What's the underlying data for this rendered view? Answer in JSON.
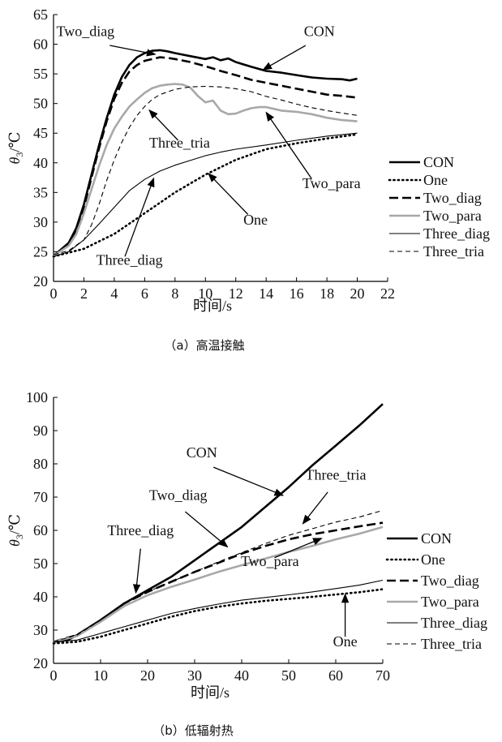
{
  "chart_data": [
    {
      "panel": "a",
      "type": "line",
      "caption": "（a）高温接触",
      "xlabel": "时间/s",
      "ylabel": "θ",
      "ylabel_sub": "3",
      "ylabel_unit": "/℃",
      "xlim": [
        0,
        22
      ],
      "ylim": [
        20,
        65
      ],
      "xticks": [
        0,
        2,
        4,
        6,
        8,
        10,
        12,
        14,
        16,
        18,
        20,
        22
      ],
      "yticks": [
        20,
        25,
        30,
        35,
        40,
        45,
        50,
        55,
        60,
        65
      ],
      "grid": false,
      "legend_position": "right",
      "series": [
        {
          "name": "CON",
          "style": "thick-solid",
          "color": "#000000",
          "x": [
            0,
            1,
            1.5,
            2,
            2.5,
            3,
            3.5,
            4,
            4.5,
            5,
            5.5,
            6,
            6.5,
            7,
            7.5,
            8,
            9,
            10,
            10.5,
            11,
            11.5,
            12,
            13,
            14,
            15,
            16,
            17,
            18,
            19,
            19.5,
            20
          ],
          "y": [
            24.3,
            26.5,
            29,
            33,
            38,
            43,
            47.5,
            51.5,
            54.5,
            56.5,
            57.8,
            58.5,
            58.9,
            59,
            58.8,
            58.5,
            58,
            57.5,
            57.8,
            57.3,
            57.6,
            57,
            56.2,
            55.5,
            55.2,
            54.8,
            54.4,
            54.2,
            54.1,
            53.9,
            54.2
          ]
        },
        {
          "name": "One",
          "style": "dotted",
          "color": "#000000",
          "x": [
            0,
            2,
            4,
            6,
            8,
            10,
            12,
            14,
            16,
            18,
            20
          ],
          "y": [
            24.2,
            25.5,
            28,
            31.5,
            35,
            38,
            40.5,
            42.3,
            43.3,
            44.1,
            44.8
          ]
        },
        {
          "name": "Two_diag",
          "style": "thick-dashed",
          "color": "#000000",
          "x": [
            0,
            1,
            1.5,
            2,
            2.5,
            3,
            3.5,
            4,
            4.5,
            5,
            5.5,
            6,
            6.5,
            7,
            7.5,
            8,
            9,
            10,
            11,
            12,
            13,
            14,
            15,
            16,
            17,
            18,
            19,
            20
          ],
          "y": [
            24.3,
            26.3,
            28.6,
            32.5,
            37.5,
            42.5,
            47,
            50.8,
            53.5,
            55.4,
            56.5,
            57.2,
            57.5,
            57.8,
            57.7,
            57.5,
            57,
            56.3,
            55.5,
            54.8,
            54,
            53.5,
            53,
            52.5,
            52,
            51.5,
            51.3,
            51
          ]
        },
        {
          "name": "Two_para",
          "style": "gray-solid",
          "color": "#a8a8a8",
          "x": [
            0,
            1,
            1.5,
            2,
            2.5,
            3,
            3.5,
            4,
            4.5,
            5,
            5.5,
            6,
            6.5,
            7,
            7.5,
            8,
            8.5,
            9,
            9.5,
            10,
            10.5,
            11,
            11.5,
            12,
            12.5,
            13,
            13.5,
            14,
            14.5,
            15,
            16,
            17,
            18,
            19,
            20
          ],
          "y": [
            24.3,
            26,
            28,
            31.5,
            35.5,
            39.5,
            43,
            45.8,
            47.8,
            49.5,
            50.7,
            51.8,
            52.6,
            53,
            53.2,
            53.3,
            53.2,
            52.7,
            51.3,
            50.2,
            50.5,
            48.8,
            48.2,
            48.3,
            48.8,
            49.2,
            49.4,
            49.4,
            49.1,
            48.8,
            48.6,
            48.2,
            47.6,
            47.2,
            47
          ]
        },
        {
          "name": "Three_diag",
          "style": "thin-solid",
          "color": "#000000",
          "x": [
            0,
            1,
            2,
            3,
            4,
            5,
            6,
            7,
            8,
            9,
            10,
            11,
            12,
            14,
            16,
            18,
            20
          ],
          "y": [
            24.2,
            25,
            27,
            29.7,
            32.5,
            35.3,
            37.2,
            38.6,
            39.6,
            40.4,
            41.2,
            41.8,
            42.3,
            43,
            43.8,
            44.5,
            45
          ]
        },
        {
          "name": "Three_tria",
          "style": "thin-dashed",
          "color": "#000000",
          "x": [
            0,
            1,
            2,
            2.5,
            3,
            3.5,
            4,
            4.5,
            5,
            5.5,
            6,
            6.5,
            7,
            8,
            9,
            10,
            11,
            12,
            13,
            14,
            15,
            16,
            17,
            18,
            19,
            20
          ],
          "y": [
            24.5,
            25.2,
            27,
            29.5,
            33,
            37,
            40.5,
            43.5,
            46,
            48,
            49.5,
            50.7,
            51.5,
            52.4,
            52.8,
            52.9,
            52.8,
            52.5,
            52,
            51.2,
            50.6,
            49.9,
            49.3,
            48.8,
            48.4,
            48
          ]
        }
      ],
      "annotations": [
        {
          "text": "Two_diag",
          "x": 2.1,
          "y": 61.4,
          "anchor": "middle",
          "arrow_from": [
            3.7,
            59.8
          ],
          "arrow_to": [
            6.7,
            58.3
          ]
        },
        {
          "text": "CON",
          "x": 17.5,
          "y": 61.4,
          "anchor": "middle",
          "arrow_from": [
            16.6,
            59.8
          ],
          "arrow_to": [
            13.8,
            55.7
          ]
        },
        {
          "text": "Three_tria",
          "x": 8.3,
          "y": 42.6,
          "anchor": "middle",
          "arrow_from": [
            8.2,
            43.8
          ],
          "arrow_to": [
            6.3,
            48.9
          ]
        },
        {
          "text": "Two_para",
          "x": 18.3,
          "y": 35.7,
          "anchor": "middle",
          "arrow_from": [
            17.0,
            37.3
          ],
          "arrow_to": [
            14.0,
            48.5
          ]
        },
        {
          "text": "One",
          "x": 13.3,
          "y": 29.6,
          "anchor": "middle",
          "arrow_from": [
            12.8,
            31.3
          ],
          "arrow_to": [
            10.2,
            38.2
          ]
        },
        {
          "text": "Three_diag",
          "x": 5.0,
          "y": 22.8,
          "anchor": "middle",
          "arrow_from": [
            4.7,
            24.2
          ],
          "arrow_to": [
            6.6,
            37.4
          ]
        }
      ]
    },
    {
      "panel": "b",
      "type": "line",
      "caption": "（b）低辐射热",
      "xlabel": "时间/s",
      "ylabel": "θ",
      "ylabel_sub": "3",
      "ylabel_unit": "/℃",
      "xlim": [
        0,
        70
      ],
      "ylim": [
        20,
        100
      ],
      "xticks": [
        0,
        10,
        20,
        30,
        40,
        50,
        60,
        70
      ],
      "yticks": [
        20,
        30,
        40,
        50,
        60,
        70,
        80,
        90,
        100
      ],
      "grid": false,
      "legend_position": "right",
      "series": [
        {
          "name": "CON",
          "style": "thick-solid",
          "color": "#000000",
          "x": [
            0,
            3,
            5,
            10,
            15,
            20,
            25,
            30,
            35,
            40,
            45,
            50,
            55,
            60,
            65,
            70
          ],
          "y": [
            26.5,
            27,
            28.5,
            33,
            38,
            42,
            46,
            51,
            56,
            61,
            67,
            73,
            79.5,
            85.5,
            91.5,
            98
          ]
        },
        {
          "name": "One",
          "style": "dotted",
          "color": "#000000",
          "x": [
            0,
            5,
            10,
            15,
            20,
            25,
            30,
            35,
            40,
            45,
            50,
            55,
            60,
            65,
            70
          ],
          "y": [
            26,
            26.5,
            28,
            30,
            32,
            34,
            35.7,
            37,
            38,
            38.8,
            39.4,
            40,
            40.7,
            41.4,
            42.3
          ]
        },
        {
          "name": "Two_diag",
          "style": "thick-dashed",
          "color": "#000000",
          "x": [
            0,
            5,
            10,
            15,
            20,
            25,
            30,
            35,
            40,
            45,
            50,
            55,
            60,
            65,
            70
          ],
          "y": [
            26.5,
            28.5,
            33,
            38,
            41.5,
            44.5,
            47.5,
            50.2,
            53,
            55.3,
            57.3,
            58.8,
            60,
            61.2,
            62.3
          ]
        },
        {
          "name": "Two_para",
          "style": "gray-solid",
          "color": "#a8a8a8",
          "x": [
            0,
            5,
            10,
            15,
            20,
            25,
            30,
            35,
            40,
            45,
            50,
            55,
            60,
            65,
            70
          ],
          "y": [
            26.5,
            28.2,
            32.5,
            37.2,
            40.5,
            43,
            45.2,
            47.5,
            49.5,
            51.5,
            53.5,
            55.3,
            57.3,
            59,
            61
          ]
        },
        {
          "name": "Three_diag",
          "style": "thin-solid",
          "color": "#000000",
          "x": [
            0,
            5,
            10,
            15,
            20,
            25,
            30,
            35,
            40,
            45,
            50,
            55,
            60,
            65,
            70
          ],
          "y": [
            26.5,
            27,
            29,
            31,
            33,
            35,
            36.5,
            37.8,
            39,
            39.8,
            40.6,
            41.5,
            42.5,
            43.5,
            45
          ]
        },
        {
          "name": "Three_tria",
          "style": "thin-dashed",
          "color": "#000000",
          "x": [
            0,
            5,
            10,
            15,
            20,
            25,
            30,
            35,
            40,
            45,
            50,
            55,
            60,
            65,
            70
          ],
          "y": [
            26.5,
            28.5,
            33,
            38,
            41.5,
            44.5,
            47.5,
            50.5,
            53.3,
            56,
            58.5,
            60.5,
            62.5,
            64,
            66
          ]
        }
      ],
      "annotations": [
        {
          "text": "CON",
          "x": 31.5,
          "y": 82,
          "anchor": "middle",
          "arrow_from": [
            34.0,
            79.0
          ],
          "arrow_to": [
            48.8,
            70.5
          ]
        },
        {
          "text": "Three_tria",
          "x": 60.0,
          "y": 75.2,
          "anchor": "middle",
          "arrow_from": [
            58.3,
            71.5
          ],
          "arrow_to": [
            53.0,
            62.0
          ]
        },
        {
          "text": "Two_diag",
          "x": 26.5,
          "y": 69.2,
          "anchor": "middle",
          "arrow_from": [
            28.0,
            65.6
          ],
          "arrow_to": [
            37.0,
            55.0
          ]
        },
        {
          "text": "Three_diag",
          "x": 18.5,
          "y": 58.5,
          "anchor": "middle",
          "arrow_from": [
            18.5,
            54.5
          ],
          "arrow_to": [
            17.5,
            41.2
          ]
        },
        {
          "text": "Two_para",
          "x": 46.0,
          "y": 49.3,
          "anchor": "middle",
          "arrow_from": [
            47.0,
            51.8
          ],
          "arrow_to": [
            57.0,
            57.6
          ]
        },
        {
          "text": "One",
          "x": 62.0,
          "y": 25.1,
          "anchor": "middle",
          "arrow_from": [
            62.0,
            28.0
          ],
          "arrow_to": [
            62.0,
            40.8
          ]
        }
      ]
    }
  ]
}
